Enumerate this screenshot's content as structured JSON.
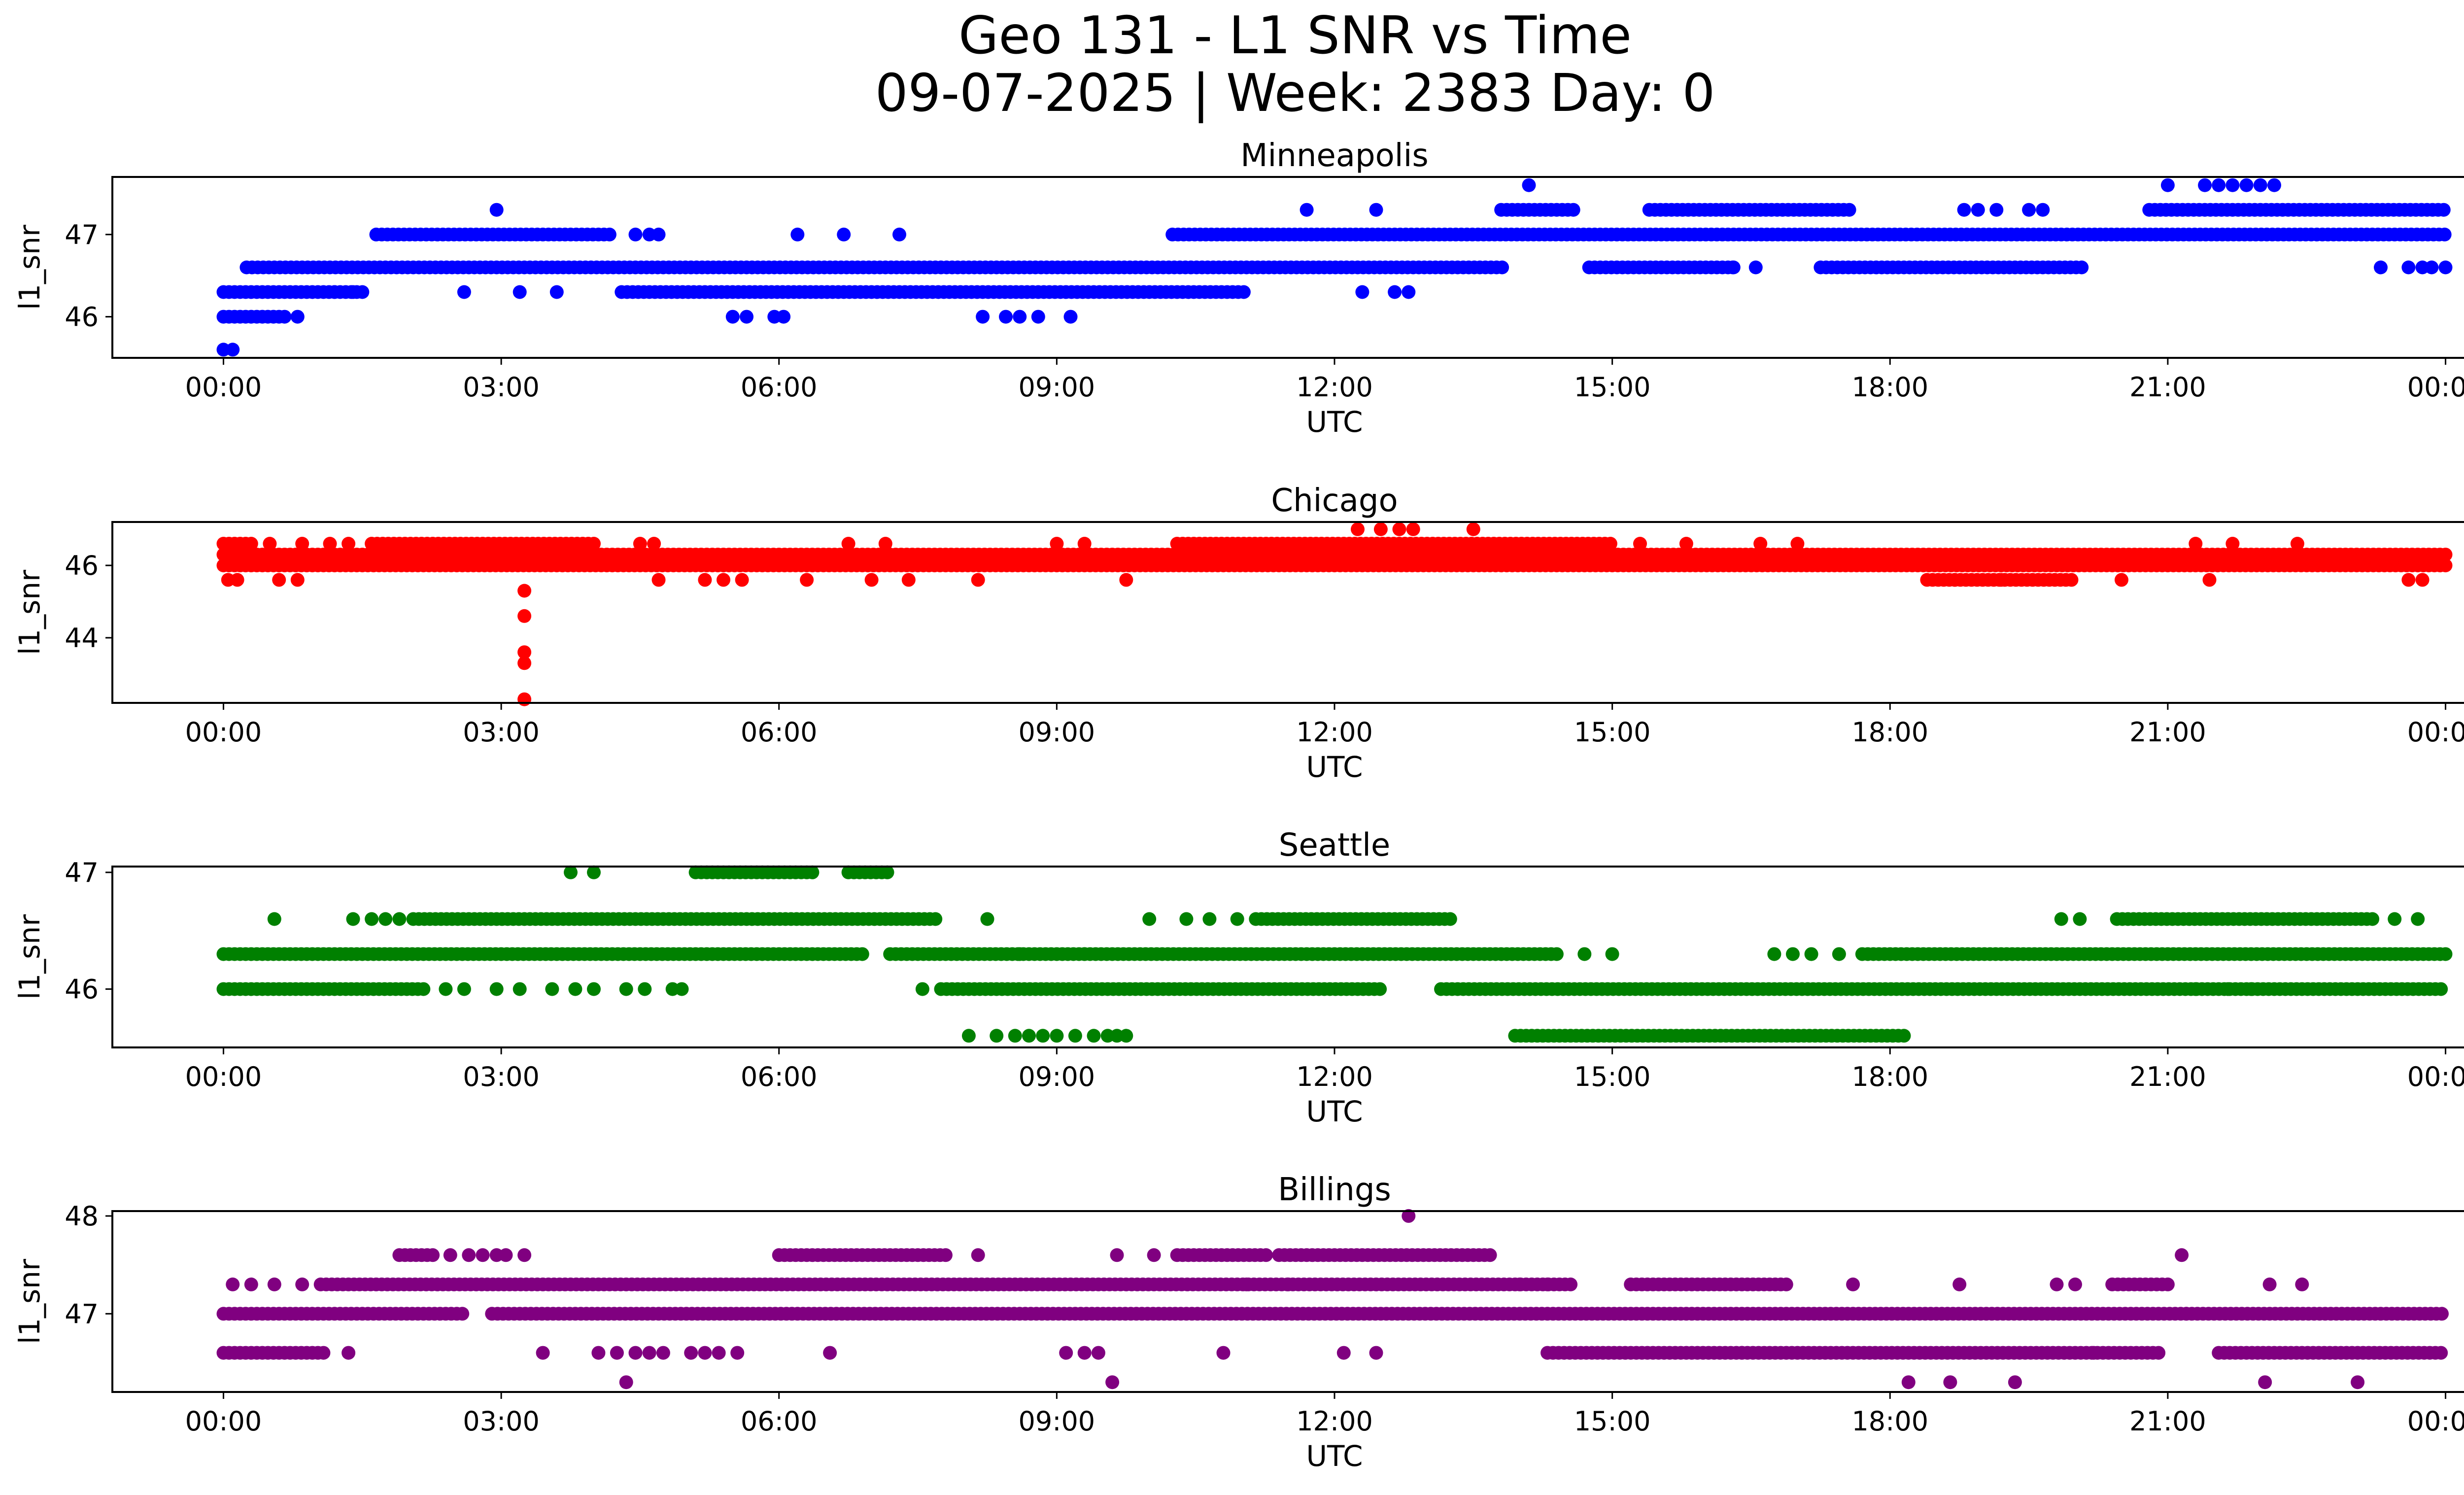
{
  "chart_data": {
    "type": "scatter",
    "title_line1": "Geo 131 - L1 SNR vs Time",
    "title_line2": "09-07-2025 | Week: 2383 Day: 0",
    "x_tick_labels": [
      "00:00",
      "03:00",
      "06:00",
      "09:00",
      "12:00",
      "15:00",
      "18:00",
      "21:00",
      "00:00"
    ],
    "x_ticks_hours": [
      0,
      3,
      6,
      9,
      12,
      15,
      18,
      21,
      24
    ],
    "xlim_hours": [
      -1.2,
      25.2
    ],
    "panels": [
      {
        "title": "Minneapolis",
        "xlabel": "UTC",
        "ylabel": "l1_snr",
        "color": "#0000ff",
        "ylim": [
          45.5,
          47.7
        ],
        "yticks": [
          46,
          47
        ],
        "dense": [
          {
            "y": 46.6,
            "segs": [
              [
                0.25,
                13.85
              ],
              [
                14.75,
                16.35
              ],
              [
                17.25,
                20.1
              ]
            ]
          },
          {
            "y": 46.3,
            "segs": [
              [
                0.0,
                1.5
              ],
              [
                4.3,
                11.05
              ]
            ]
          },
          {
            "y": 47.0,
            "segs": [
              [
                1.65,
                4.2
              ],
              [
                10.25,
                24.0
              ]
            ]
          },
          {
            "y": 47.3,
            "segs": [
              [
                13.8,
                14.6
              ],
              [
                15.4,
                17.6
              ],
              [
                20.8,
                24.0
              ]
            ]
          },
          {
            "y": 46.0,
            "segs": [
              [
                0.0,
                0.7
              ]
            ]
          }
        ],
        "points": [
          [
            0.0,
            45.6
          ],
          [
            0.1,
            45.6
          ],
          [
            0.8,
            46.0
          ],
          [
            1.2,
            46.3
          ],
          [
            1.4,
            46.3
          ],
          [
            2.6,
            46.3
          ],
          [
            2.95,
            47.3
          ],
          [
            3.2,
            46.3
          ],
          [
            3.6,
            46.3
          ],
          [
            4.45,
            47.0
          ],
          [
            4.6,
            47.0
          ],
          [
            4.7,
            47.0
          ],
          [
            6.2,
            47.0
          ],
          [
            6.7,
            47.0
          ],
          [
            7.3,
            47.0
          ],
          [
            5.5,
            46.0
          ],
          [
            5.65,
            46.0
          ],
          [
            5.95,
            46.0
          ],
          [
            6.05,
            46.0
          ],
          [
            8.2,
            46.0
          ],
          [
            8.45,
            46.0
          ],
          [
            8.6,
            46.0
          ],
          [
            8.8,
            46.0
          ],
          [
            9.15,
            46.0
          ],
          [
            11.7,
            47.3
          ],
          [
            12.45,
            47.3
          ],
          [
            12.3,
            46.3
          ],
          [
            12.65,
            46.3
          ],
          [
            12.8,
            46.3
          ],
          [
            14.1,
            47.6
          ],
          [
            16.3,
            46.6
          ],
          [
            16.55,
            46.6
          ],
          [
            18.8,
            47.3
          ],
          [
            18.95,
            47.3
          ],
          [
            19.15,
            47.3
          ],
          [
            19.5,
            47.3
          ],
          [
            19.65,
            47.3
          ],
          [
            21.0,
            47.6
          ],
          [
            21.4,
            47.6
          ],
          [
            21.55,
            47.6
          ],
          [
            21.7,
            47.6
          ],
          [
            21.85,
            47.6
          ],
          [
            22.0,
            47.6
          ],
          [
            22.15,
            47.6
          ],
          [
            23.3,
            46.6
          ],
          [
            23.6,
            46.6
          ],
          [
            23.75,
            46.6
          ],
          [
            23.85,
            46.6
          ],
          [
            24.0,
            46.6
          ]
        ]
      },
      {
        "title": "Chicago",
        "xlabel": "UTC",
        "ylabel": "l1_snr",
        "color": "#ff0000",
        "ylim": [
          42.2,
          47.2
        ],
        "yticks": [
          44,
          46
        ],
        "dense": [
          {
            "y": 46.3,
            "segs": [
              [
                0.0,
                24.0
              ]
            ]
          },
          {
            "y": 46.0,
            "segs": [
              [
                0.0,
                24.0
              ]
            ]
          },
          {
            "y": 46.6,
            "segs": [
              [
                0.0,
                0.35
              ],
              [
                1.6,
                4.0
              ],
              [
                10.3,
                15.0
              ]
            ]
          },
          {
            "y": 45.6,
            "segs": [
              [
                18.4,
                20.0
              ]
            ]
          }
        ],
        "points": [
          [
            0.05,
            45.6
          ],
          [
            0.15,
            45.6
          ],
          [
            0.5,
            46.6
          ],
          [
            0.6,
            45.6
          ],
          [
            0.8,
            45.6
          ],
          [
            0.85,
            46.6
          ],
          [
            1.15,
            46.6
          ],
          [
            1.35,
            46.6
          ],
          [
            3.25,
            45.3
          ],
          [
            3.25,
            44.6
          ],
          [
            3.25,
            43.6
          ],
          [
            3.25,
            43.3
          ],
          [
            3.25,
            42.3
          ],
          [
            4.5,
            46.6
          ],
          [
            4.65,
            46.6
          ],
          [
            4.7,
            45.6
          ],
          [
            5.2,
            45.6
          ],
          [
            5.4,
            45.6
          ],
          [
            5.6,
            45.6
          ],
          [
            6.3,
            45.6
          ],
          [
            6.75,
            46.6
          ],
          [
            7.15,
            46.6
          ],
          [
            7.0,
            45.6
          ],
          [
            7.4,
            45.6
          ],
          [
            8.15,
            45.6
          ],
          [
            9.0,
            46.6
          ],
          [
            9.3,
            46.6
          ],
          [
            9.75,
            45.6
          ],
          [
            12.25,
            47.0
          ],
          [
            12.5,
            47.0
          ],
          [
            12.7,
            47.0
          ],
          [
            12.85,
            47.0
          ],
          [
            13.5,
            47.0
          ],
          [
            15.3,
            46.6
          ],
          [
            15.8,
            46.6
          ],
          [
            16.6,
            46.6
          ],
          [
            17.0,
            46.6
          ],
          [
            18.7,
            45.6
          ],
          [
            19.2,
            45.6
          ],
          [
            20.5,
            45.6
          ],
          [
            21.3,
            46.6
          ],
          [
            21.7,
            46.6
          ],
          [
            21.45,
            45.6
          ],
          [
            22.4,
            46.6
          ],
          [
            23.6,
            45.6
          ],
          [
            23.75,
            45.6
          ]
        ]
      },
      {
        "title": "Seattle",
        "xlabel": "UTC",
        "ylabel": "l1_snr",
        "color": "#008000",
        "ylim": [
          45.5,
          47.05
        ],
        "yticks": [
          46,
          47
        ],
        "dense": [
          {
            "y": 46.3,
            "segs": [
              [
                0.0,
                6.95
              ],
              [
                7.2,
                14.45
              ],
              [
                17.7,
                24.0
              ]
            ]
          },
          {
            "y": 46.0,
            "segs": [
              [
                0.0,
                2.2
              ],
              [
                7.75,
                12.5
              ],
              [
                13.15,
                24.0
              ]
            ]
          },
          {
            "y": 46.6,
            "segs": [
              [
                2.05,
                7.7
              ],
              [
                11.15,
                13.25
              ],
              [
                20.45,
                23.25
              ]
            ]
          },
          {
            "y": 47.0,
            "segs": [
              [
                5.1,
                6.4
              ],
              [
                6.75,
                7.2
              ]
            ]
          },
          {
            "y": 45.6,
            "segs": [
              [
                13.95,
                18.2
              ]
            ]
          }
        ],
        "points": [
          [
            0.55,
            46.6
          ],
          [
            1.4,
            46.6
          ],
          [
            1.6,
            46.6
          ],
          [
            1.75,
            46.6
          ],
          [
            1.9,
            46.6
          ],
          [
            2.4,
            46.0
          ],
          [
            2.6,
            46.0
          ],
          [
            2.95,
            46.0
          ],
          [
            3.2,
            46.0
          ],
          [
            3.55,
            46.0
          ],
          [
            3.8,
            46.0
          ],
          [
            4.0,
            46.0
          ],
          [
            4.35,
            46.0
          ],
          [
            4.55,
            46.0
          ],
          [
            4.85,
            46.0
          ],
          [
            4.95,
            46.0
          ],
          [
            3.75,
            47.0
          ],
          [
            4.0,
            47.0
          ],
          [
            7.55,
            46.0
          ],
          [
            8.25,
            46.6
          ],
          [
            8.05,
            45.6
          ],
          [
            8.35,
            45.6
          ],
          [
            8.55,
            45.6
          ],
          [
            8.7,
            45.6
          ],
          [
            8.85,
            45.6
          ],
          [
            9.0,
            45.6
          ],
          [
            9.2,
            45.6
          ],
          [
            9.4,
            45.6
          ],
          [
            9.55,
            45.6
          ],
          [
            9.65,
            45.6
          ],
          [
            9.75,
            45.6
          ],
          [
            8.6,
            46.3
          ],
          [
            9.3,
            46.3
          ],
          [
            10.0,
            46.6
          ],
          [
            10.4,
            46.6
          ],
          [
            10.65,
            46.6
          ],
          [
            10.95,
            46.6
          ],
          [
            15.0,
            46.3
          ],
          [
            14.7,
            46.3
          ],
          [
            16.75,
            46.3
          ],
          [
            16.95,
            46.3
          ],
          [
            17.15,
            46.3
          ],
          [
            17.45,
            46.3
          ],
          [
            19.85,
            46.6
          ],
          [
            20.05,
            46.6
          ],
          [
            21.3,
            46.0
          ],
          [
            21.65,
            46.0
          ],
          [
            21.9,
            46.0
          ],
          [
            23.45,
            46.6
          ],
          [
            23.7,
            46.6
          ]
        ]
      },
      {
        "title": "Billings",
        "xlabel": "UTC",
        "ylabel": "l1_snr",
        "color": "#800080",
        "ylim": [
          46.2,
          48.05
        ],
        "yticks": [
          47,
          48
        ],
        "dense": [
          {
            "y": 47.0,
            "segs": [
              [
                0.0,
                2.6
              ],
              [
                2.9,
                24.0
              ]
            ]
          },
          {
            "y": 47.3,
            "segs": [
              [
                1.05,
                14.55
              ],
              [
                15.2,
                16.9
              ],
              [
                20.4,
                21.0
              ]
            ]
          },
          {
            "y": 46.6,
            "segs": [
              [
                0.0,
                1.1
              ],
              [
                14.3,
                20.95
              ],
              [
                21.55,
                24.0
              ]
            ]
          },
          {
            "y": 47.6,
            "segs": [
              [
                1.9,
                2.3
              ],
              [
                6.0,
                7.8
              ],
              [
                10.3,
                11.3
              ],
              [
                11.4,
                13.7
              ]
            ]
          }
        ],
        "points": [
          [
            0.1,
            47.3
          ],
          [
            0.3,
            47.3
          ],
          [
            0.55,
            47.3
          ],
          [
            0.85,
            47.3
          ],
          [
            1.35,
            46.6
          ],
          [
            2.45,
            47.6
          ],
          [
            2.65,
            47.6
          ],
          [
            2.8,
            47.6
          ],
          [
            2.95,
            47.6
          ],
          [
            3.05,
            47.6
          ],
          [
            3.25,
            47.6
          ],
          [
            3.45,
            46.6
          ],
          [
            4.05,
            46.6
          ],
          [
            4.25,
            46.6
          ],
          [
            4.45,
            46.6
          ],
          [
            4.6,
            46.6
          ],
          [
            4.75,
            46.6
          ],
          [
            5.05,
            46.6
          ],
          [
            5.2,
            46.6
          ],
          [
            5.35,
            46.6
          ],
          [
            5.55,
            46.6
          ],
          [
            4.35,
            46.3
          ],
          [
            6.55,
            46.6
          ],
          [
            8.15,
            47.6
          ],
          [
            9.1,
            46.6
          ],
          [
            9.3,
            46.6
          ],
          [
            9.45,
            46.6
          ],
          [
            9.6,
            46.3
          ],
          [
            9.65,
            47.6
          ],
          [
            10.05,
            47.6
          ],
          [
            10.8,
            46.6
          ],
          [
            11.05,
            47.3
          ],
          [
            11.5,
            47.3
          ],
          [
            12.1,
            46.6
          ],
          [
            12.45,
            46.6
          ],
          [
            12.8,
            48.0
          ],
          [
            14.0,
            47.3
          ],
          [
            14.3,
            47.3
          ],
          [
            16.4,
            46.6
          ],
          [
            17.6,
            47.3
          ],
          [
            18.2,
            46.3
          ],
          [
            18.65,
            46.3
          ],
          [
            18.75,
            47.3
          ],
          [
            19.35,
            46.3
          ],
          [
            19.8,
            47.3
          ],
          [
            20.0,
            47.3
          ],
          [
            20.2,
            46.6
          ],
          [
            21.15,
            47.6
          ],
          [
            22.05,
            46.3
          ],
          [
            22.1,
            47.3
          ],
          [
            22.45,
            47.3
          ],
          [
            23.05,
            46.3
          ],
          [
            21.2,
            47.0
          ]
        ]
      }
    ]
  }
}
